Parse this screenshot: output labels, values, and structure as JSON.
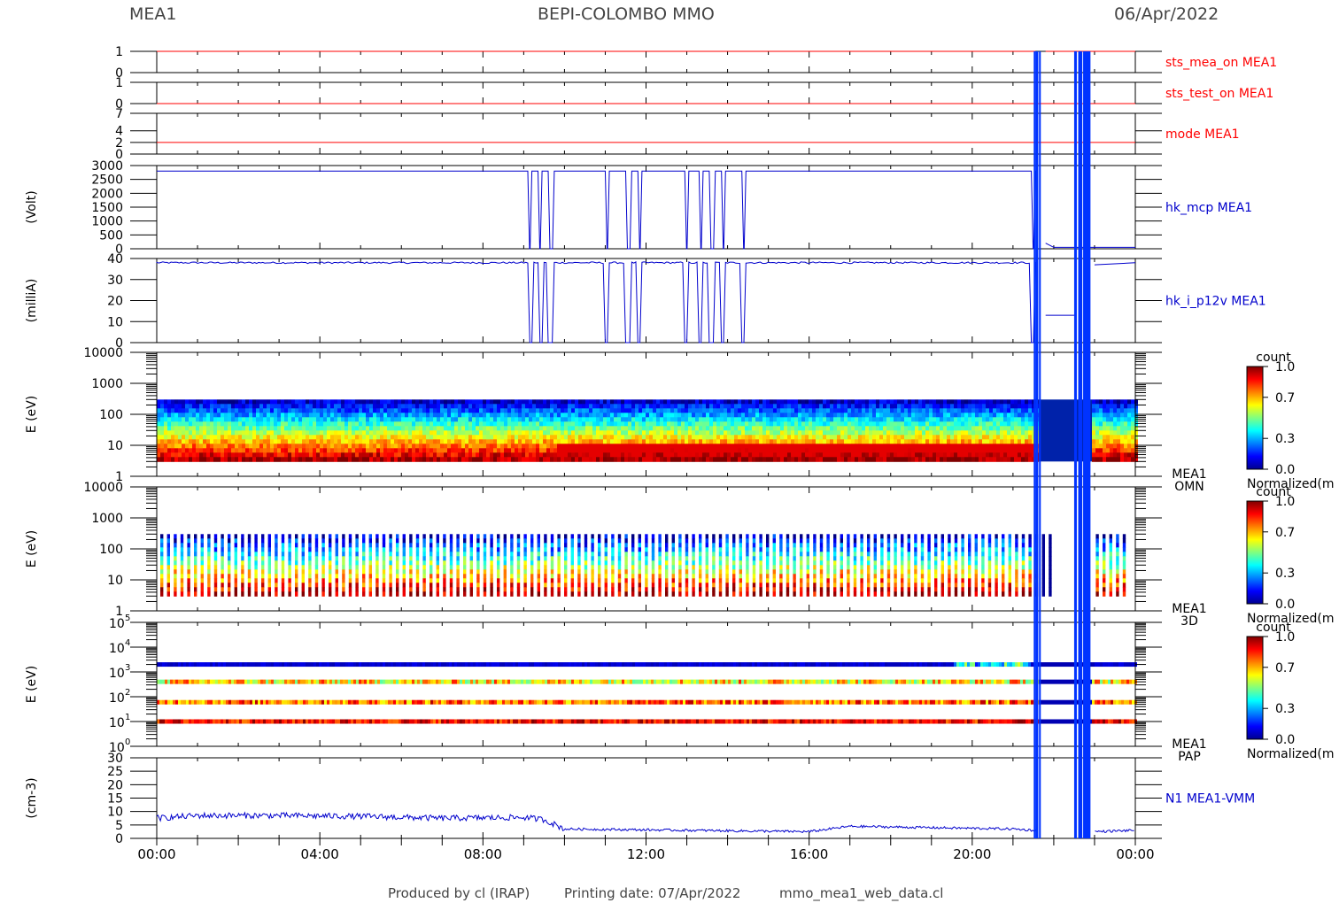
{
  "header": {
    "instrument": "MEA1",
    "mission": "BEPI-COLOMBO MMO",
    "date": "06/Apr/2022"
  },
  "footer": {
    "produced_by": "Produced by cl (IRAP)",
    "printing_date": "Printing date: 07/Apr/2022",
    "script": "mmo_mea1_web_data.cl"
  },
  "colors": {
    "red_trace": "#ff0000",
    "blue_trace": "#0000cc",
    "block_blue": "#0033ff"
  },
  "chart_data": [
    {
      "type": "line",
      "name": "sts_mea_on MEA1",
      "label": "sts_mea_on MEA1",
      "color": "#ff0000",
      "ylim": [
        0,
        1
      ],
      "yticks": [
        "0",
        "1"
      ],
      "segments": [
        {
          "x": [
            0,
            21.55
          ],
          "y": [
            1,
            1
          ]
        },
        {
          "x": [
            21.8,
            24
          ],
          "y": [
            1,
            1
          ]
        }
      ]
    },
    {
      "type": "line",
      "name": "sts_test_on MEA1",
      "label": "sts_test_on MEA1",
      "color": "#ff0000",
      "ylim": [
        0,
        1
      ],
      "yticks": [
        "0",
        "1"
      ],
      "segments": [
        {
          "x": [
            0,
            24
          ],
          "y": [
            0,
            0
          ]
        }
      ]
    },
    {
      "type": "line",
      "name": "mode MEA1",
      "label": "mode MEA1",
      "color": "#ff0000",
      "ylim": [
        0,
        7
      ],
      "yticks": [
        "0",
        "2",
        "4",
        "7"
      ],
      "segments": [
        {
          "x": [
            0,
            24
          ],
          "y": [
            2,
            2
          ]
        }
      ]
    },
    {
      "type": "line",
      "name": "hk_mcp MEA1",
      "label": "hk_mcp MEA1",
      "ylabel": "(Volt)",
      "color": "#0000cc",
      "ylim": [
        0,
        3000
      ],
      "yticks": [
        "0",
        "500",
        "1000",
        "1500",
        "2000",
        "2500",
        "3000"
      ],
      "high": 2800,
      "low": 0,
      "dips": [
        [
          9.1,
          9.2
        ],
        [
          9.35,
          9.45
        ],
        [
          9.6,
          9.75
        ],
        [
          11.0,
          11.1
        ],
        [
          11.5,
          11.65
        ],
        [
          11.8,
          11.9
        ],
        [
          12.95,
          13.05
        ],
        [
          13.3,
          13.4
        ],
        [
          13.55,
          13.7
        ],
        [
          13.85,
          13.95
        ],
        [
          14.35,
          14.45
        ],
        [
          21.45,
          21.55
        ]
      ],
      "after_21_8": 50
    },
    {
      "type": "line",
      "name": "hk_i_p12v MEA1",
      "label": "hk_i_p12v MEA1",
      "ylabel": "(milliA)",
      "color": "#0000cc",
      "ylim": [
        0,
        40
      ],
      "yticks": [
        "0",
        "10",
        "20",
        "30",
        "40"
      ],
      "high": 38,
      "low": 0,
      "late_level": 13,
      "recover_at": 23.0
    },
    {
      "type": "heatmap",
      "name": "MEA1 OMN",
      "label_line1": "MEA1",
      "label_line2": "OMN",
      "ylabel": "E (eV)",
      "yscale": "log",
      "ylim": [
        1,
        10000
      ],
      "yticks": [
        "1",
        "10",
        "100",
        "1000",
        "10000"
      ],
      "energy_range": [
        3,
        300
      ],
      "colorbar": {
        "title": "count",
        "label": "Normalized(m",
        "ticks": [
          "0.0",
          "0.3",
          "0.7",
          "1.0"
        ]
      }
    },
    {
      "type": "heatmap",
      "name": "MEA1 3D",
      "label_line1": "MEA1",
      "label_line2": "3D",
      "ylabel": "E (eV)",
      "yscale": "log",
      "ylim": [
        1,
        10000
      ],
      "yticks": [
        "1",
        "10",
        "100",
        "1000",
        "10000"
      ],
      "energy_range": [
        3,
        300
      ],
      "colorbar": {
        "title": "count",
        "label": "Normalized(m",
        "ticks": [
          "0.0",
          "0.3",
          "0.7",
          "1.0"
        ]
      }
    },
    {
      "type": "heatmap",
      "name": "MEA1 PAP",
      "label_line1": "MEA1",
      "label_line2": "PAP",
      "ylabel": "E (eV)",
      "yscale": "log",
      "ylim": [
        1,
        100000
      ],
      "ytick_exponents": [
        "0",
        "1",
        "2",
        "3",
        "4",
        "5"
      ],
      "ytick_base": "10",
      "bands_eV": [
        2000,
        400,
        60,
        10
      ],
      "colorbar": {
        "title": "count",
        "label": "Normalized(m",
        "ticks": [
          "0.0",
          "0.3",
          "0.7",
          "1.0"
        ]
      }
    },
    {
      "type": "line",
      "name": "N1 MEA1-VMM",
      "label": "N1 MEA1-VMM",
      "ylabel": "(cm-3)",
      "color": "#0000cc",
      "ylim": [
        0,
        30
      ],
      "yticks": [
        "0",
        "5",
        "10",
        "15",
        "20",
        "25",
        "30"
      ],
      "profile": [
        [
          0,
          7.5
        ],
        [
          1,
          8.5
        ],
        [
          3,
          8.5
        ],
        [
          5,
          8.2
        ],
        [
          7,
          7.5
        ],
        [
          9,
          7.8
        ],
        [
          9.5,
          7
        ],
        [
          10,
          3.5
        ],
        [
          13,
          3
        ],
        [
          16,
          2.5
        ],
        [
          17,
          4.5
        ],
        [
          21,
          3.5
        ],
        [
          21.5,
          3
        ],
        [
          23,
          2.5
        ],
        [
          24,
          3
        ]
      ]
    }
  ],
  "x_axis": {
    "range": [
      0,
      24
    ],
    "unit": "hours",
    "ticks": [
      "00:00",
      "04:00",
      "08:00",
      "12:00",
      "16:00",
      "20:00",
      "00:00"
    ]
  },
  "blue_blocks": [
    [
      21.55,
      21.62
    ],
    [
      22.5,
      22.55
    ],
    [
      22.6,
      22.7
    ],
    [
      22.72,
      22.9
    ]
  ]
}
